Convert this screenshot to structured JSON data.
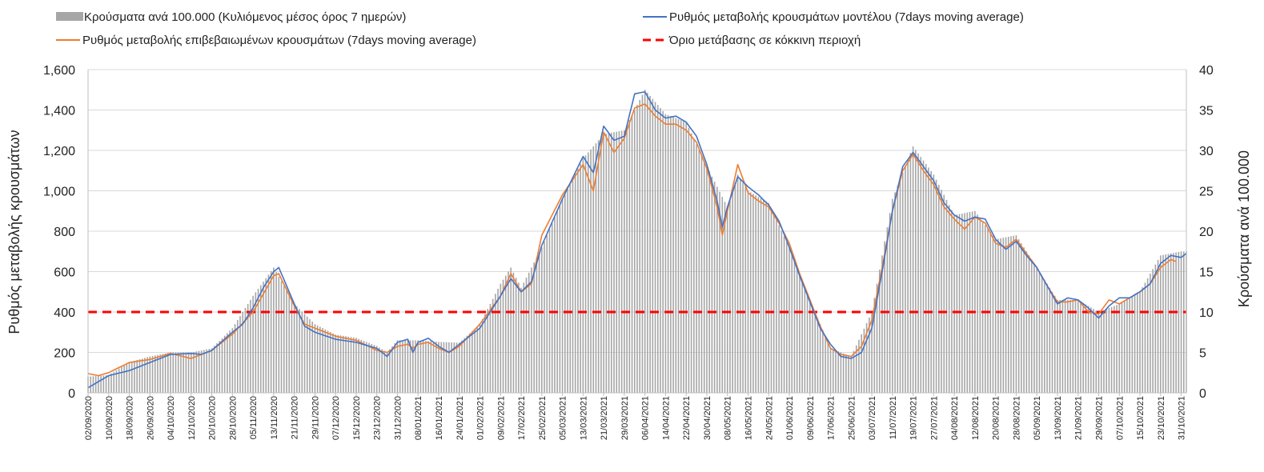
{
  "chart_data": {
    "type": "bar+line",
    "legend": [
      {
        "key": "bars",
        "label": "Κρούσματα ανά 100.000 (Κυλιόμενος μέσος όρος 7 ημερών)",
        "color": "#a6a6a6",
        "kind": "bar"
      },
      {
        "key": "model",
        "label": "Ρυθμός μεταβολής κρουσμάτων μοντέλου (7days moving average)",
        "color": "#4472c4",
        "kind": "line"
      },
      {
        "key": "confirmed",
        "label": "Ρυθμός μεταβολής επιβεβαιωμένων κρουσμάτων (7days moving average)",
        "color": "#ed7d31",
        "kind": "line"
      },
      {
        "key": "threshold",
        "label": "Όριο μετάβασης σε κόκκινη περιοχή",
        "color": "#ff0000",
        "kind": "dashed"
      }
    ],
    "ylabel_left": "Ρυθμός μεταβολής κρουσμάτων",
    "ylabel_right": "Κρούσματα ανά 100.000",
    "ylim_left": [
      0,
      1600
    ],
    "ylim_right": [
      0,
      40
    ],
    "yticks_left": [
      "0",
      "200",
      "400",
      "600",
      "800",
      "1,000",
      "1,200",
      "1,400",
      "1,600"
    ],
    "yticks_right": [
      "0",
      "5",
      "10",
      "15",
      "20",
      "25",
      "30",
      "35",
      "40"
    ],
    "threshold_value": 400,
    "x_start": "2020-09-02",
    "x_end": "2021-11-02",
    "xtick_labels": [
      "02/09/2020",
      "10/09/2020",
      "18/09/2020",
      "26/09/2020",
      "04/10/2020",
      "12/10/2020",
      "20/10/2020",
      "28/10/2020",
      "05/11/2020",
      "13/11/2020",
      "21/11/2020",
      "29/11/2020",
      "07/12/2020",
      "15/12/2020",
      "23/12/2020",
      "31/12/2020",
      "08/01/2021",
      "16/01/2021",
      "24/01/2021",
      "01/02/2021",
      "09/02/2021",
      "17/02/2021",
      "25/02/2021",
      "05/03/2021",
      "13/03/2021",
      "21/03/2021",
      "29/03/2021",
      "06/04/2021",
      "14/04/2021",
      "22/04/2021",
      "30/04/2021",
      "08/05/2021",
      "16/05/2021",
      "24/05/2021",
      "01/06/2021",
      "09/06/2021",
      "17/06/2021",
      "25/06/2021",
      "03/07/2021",
      "11/07/2021",
      "19/07/2021",
      "27/07/2021",
      "04/08/2021",
      "12/08/2021",
      "20/08/2021",
      "28/08/2021",
      "05/09/2021",
      "13/09/2021",
      "21/09/2021",
      "29/09/2021",
      "07/10/2021",
      "15/10/2021",
      "23/10/2021",
      "31/10/2021"
    ],
    "model_series": [
      [
        "2020-09-02",
        25
      ],
      [
        "2020-09-10",
        85
      ],
      [
        "2020-09-18",
        110
      ],
      [
        "2020-09-26",
        150
      ],
      [
        "2020-10-04",
        190
      ],
      [
        "2020-10-12",
        195
      ],
      [
        "2020-10-16",
        190
      ],
      [
        "2020-10-20",
        210
      ],
      [
        "2020-10-28",
        300
      ],
      [
        "2020-11-01",
        340
      ],
      [
        "2020-11-05",
        420
      ],
      [
        "2020-11-09",
        520
      ],
      [
        "2020-11-13",
        600
      ],
      [
        "2020-11-15",
        620
      ],
      [
        "2020-11-21",
        440
      ],
      [
        "2020-11-25",
        330
      ],
      [
        "2020-11-29",
        300
      ],
      [
        "2020-12-07",
        265
      ],
      [
        "2020-12-15",
        250
      ],
      [
        "2020-12-23",
        220
      ],
      [
        "2020-12-27",
        180
      ],
      [
        "2020-12-31",
        250
      ],
      [
        "2021-01-04",
        265
      ],
      [
        "2021-01-06",
        200
      ],
      [
        "2021-01-08",
        250
      ],
      [
        "2021-01-12",
        270
      ],
      [
        "2021-01-16",
        230
      ],
      [
        "2021-01-20",
        200
      ],
      [
        "2021-01-24",
        240
      ],
      [
        "2021-02-01",
        320
      ],
      [
        "2021-02-09",
        480
      ],
      [
        "2021-02-13",
        565
      ],
      [
        "2021-02-17",
        500
      ],
      [
        "2021-02-21",
        550
      ],
      [
        "2021-02-25",
        730
      ],
      [
        "2021-03-05",
        960
      ],
      [
        "2021-03-13",
        1170
      ],
      [
        "2021-03-17",
        1090
      ],
      [
        "2021-03-21",
        1320
      ],
      [
        "2021-03-25",
        1250
      ],
      [
        "2021-03-29",
        1270
      ],
      [
        "2021-04-02",
        1480
      ],
      [
        "2021-04-06",
        1490
      ],
      [
        "2021-04-10",
        1400
      ],
      [
        "2021-04-14",
        1360
      ],
      [
        "2021-04-18",
        1370
      ],
      [
        "2021-04-22",
        1340
      ],
      [
        "2021-04-26",
        1270
      ],
      [
        "2021-04-30",
        1130
      ],
      [
        "2021-05-04",
        950
      ],
      [
        "2021-05-06",
        820
      ],
      [
        "2021-05-08",
        920
      ],
      [
        "2021-05-12",
        1070
      ],
      [
        "2021-05-16",
        1020
      ],
      [
        "2021-05-20",
        980
      ],
      [
        "2021-05-24",
        930
      ],
      [
        "2021-05-28",
        850
      ],
      [
        "2021-06-01",
        720
      ],
      [
        "2021-06-05",
        580
      ],
      [
        "2021-06-09",
        450
      ],
      [
        "2021-06-13",
        320
      ],
      [
        "2021-06-17",
        240
      ],
      [
        "2021-06-21",
        180
      ],
      [
        "2021-06-25",
        170
      ],
      [
        "2021-06-29",
        200
      ],
      [
        "2021-07-03",
        320
      ],
      [
        "2021-07-07",
        600
      ],
      [
        "2021-07-11",
        900
      ],
      [
        "2021-07-15",
        1120
      ],
      [
        "2021-07-19",
        1190
      ],
      [
        "2021-07-23",
        1120
      ],
      [
        "2021-07-27",
        1050
      ],
      [
        "2021-07-31",
        940
      ],
      [
        "2021-08-04",
        880
      ],
      [
        "2021-08-08",
        850
      ],
      [
        "2021-08-12",
        870
      ],
      [
        "2021-08-16",
        860
      ],
      [
        "2021-08-20",
        760
      ],
      [
        "2021-08-24",
        710
      ],
      [
        "2021-08-28",
        750
      ],
      [
        "2021-09-01",
        680
      ],
      [
        "2021-09-05",
        620
      ],
      [
        "2021-09-09",
        530
      ],
      [
        "2021-09-13",
        440
      ],
      [
        "2021-09-17",
        470
      ],
      [
        "2021-09-21",
        460
      ],
      [
        "2021-09-25",
        420
      ],
      [
        "2021-09-29",
        370
      ],
      [
        "2021-10-03",
        430
      ],
      [
        "2021-10-07",
        470
      ],
      [
        "2021-10-11",
        470
      ],
      [
        "2021-10-15",
        500
      ],
      [
        "2021-10-19",
        540
      ],
      [
        "2021-10-23",
        640
      ],
      [
        "2021-10-27",
        680
      ],
      [
        "2021-10-31",
        670
      ],
      [
        "2021-11-02",
        690
      ]
    ],
    "confirmed_series": [
      [
        "2020-09-02",
        95
      ],
      [
        "2020-09-06",
        85
      ],
      [
        "2020-09-10",
        100
      ],
      [
        "2020-09-18",
        150
      ],
      [
        "2020-09-26",
        165
      ],
      [
        "2020-10-04",
        195
      ],
      [
        "2020-10-12",
        170
      ],
      [
        "2020-10-20",
        210
      ],
      [
        "2020-10-28",
        290
      ],
      [
        "2020-11-05",
        400
      ],
      [
        "2020-11-09",
        490
      ],
      [
        "2020-11-13",
        580
      ],
      [
        "2020-11-15",
        590
      ],
      [
        "2020-11-21",
        430
      ],
      [
        "2020-11-25",
        340
      ],
      [
        "2020-11-29",
        320
      ],
      [
        "2020-12-07",
        280
      ],
      [
        "2020-12-15",
        260
      ],
      [
        "2020-12-23",
        210
      ],
      [
        "2020-12-27",
        200
      ],
      [
        "2020-12-31",
        230
      ],
      [
        "2021-01-04",
        240
      ],
      [
        "2021-01-06",
        220
      ],
      [
        "2021-01-08",
        240
      ],
      [
        "2021-01-12",
        250
      ],
      [
        "2021-01-16",
        220
      ],
      [
        "2021-01-20",
        200
      ],
      [
        "2021-01-24",
        230
      ],
      [
        "2021-02-01",
        340
      ],
      [
        "2021-02-09",
        480
      ],
      [
        "2021-02-13",
        590
      ],
      [
        "2021-02-17",
        500
      ],
      [
        "2021-02-21",
        540
      ],
      [
        "2021-02-25",
        780
      ],
      [
        "2021-03-05",
        980
      ],
      [
        "2021-03-13",
        1130
      ],
      [
        "2021-03-17",
        1000
      ],
      [
        "2021-03-21",
        1290
      ],
      [
        "2021-03-25",
        1190
      ],
      [
        "2021-03-29",
        1260
      ],
      [
        "2021-04-02",
        1410
      ],
      [
        "2021-04-06",
        1430
      ],
      [
        "2021-04-10",
        1370
      ],
      [
        "2021-04-14",
        1330
      ],
      [
        "2021-04-18",
        1330
      ],
      [
        "2021-04-22",
        1300
      ],
      [
        "2021-04-26",
        1240
      ],
      [
        "2021-04-30",
        1110
      ],
      [
        "2021-05-04",
        920
      ],
      [
        "2021-05-06",
        780
      ],
      [
        "2021-05-08",
        900
      ],
      [
        "2021-05-12",
        1130
      ],
      [
        "2021-05-16",
        990
      ],
      [
        "2021-05-20",
        950
      ],
      [
        "2021-05-24",
        920
      ],
      [
        "2021-05-28",
        840
      ],
      [
        "2021-06-01",
        740
      ],
      [
        "2021-06-05",
        590
      ],
      [
        "2021-06-09",
        460
      ],
      [
        "2021-06-13",
        330
      ],
      [
        "2021-06-17",
        220
      ],
      [
        "2021-06-21",
        190
      ],
      [
        "2021-06-25",
        180
      ],
      [
        "2021-06-29",
        230
      ],
      [
        "2021-07-03",
        360
      ],
      [
        "2021-07-07",
        620
      ],
      [
        "2021-07-11",
        900
      ],
      [
        "2021-07-15",
        1100
      ],
      [
        "2021-07-19",
        1180
      ],
      [
        "2021-07-23",
        1100
      ],
      [
        "2021-07-27",
        1030
      ],
      [
        "2021-07-31",
        920
      ],
      [
        "2021-08-04",
        860
      ],
      [
        "2021-08-08",
        810
      ],
      [
        "2021-08-12",
        870
      ],
      [
        "2021-08-16",
        840
      ],
      [
        "2021-08-20",
        740
      ],
      [
        "2021-08-24",
        720
      ],
      [
        "2021-08-28",
        760
      ],
      [
        "2021-09-01",
        690
      ],
      [
        "2021-09-05",
        620
      ],
      [
        "2021-09-09",
        530
      ],
      [
        "2021-09-13",
        450
      ],
      [
        "2021-09-17",
        450
      ],
      [
        "2021-09-21",
        460
      ],
      [
        "2021-09-25",
        400
      ],
      [
        "2021-09-29",
        390
      ],
      [
        "2021-10-03",
        460
      ],
      [
        "2021-10-07",
        440
      ],
      [
        "2021-10-11",
        470
      ],
      [
        "2021-10-15",
        500
      ],
      [
        "2021-10-19",
        540
      ],
      [
        "2021-10-23",
        620
      ],
      [
        "2021-10-27",
        660
      ],
      [
        "2021-10-29",
        650
      ]
    ],
    "bars_series": [
      [
        "2020-09-02",
        2
      ],
      [
        "2020-09-10",
        2.2
      ],
      [
        "2020-09-18",
        3.8
      ],
      [
        "2020-09-26",
        4.5
      ],
      [
        "2020-10-04",
        5
      ],
      [
        "2020-10-12",
        5
      ],
      [
        "2020-10-20",
        5.5
      ],
      [
        "2020-10-28",
        8
      ],
      [
        "2020-11-05",
        12
      ],
      [
        "2020-11-13",
        15.5
      ],
      [
        "2020-11-21",
        11
      ],
      [
        "2020-11-29",
        8.5
      ],
      [
        "2020-12-07",
        7.2
      ],
      [
        "2020-12-15",
        6.8
      ],
      [
        "2020-12-23",
        5.8
      ],
      [
        "2020-12-27",
        5
      ],
      [
        "2020-12-31",
        6.5
      ],
      [
        "2021-01-08",
        6.5
      ],
      [
        "2021-01-16",
        6.3
      ],
      [
        "2021-01-24",
        6.2
      ],
      [
        "2021-02-01",
        8.5
      ],
      [
        "2021-02-09",
        13.5
      ],
      [
        "2021-02-13",
        15.5
      ],
      [
        "2021-02-17",
        13
      ],
      [
        "2021-02-25",
        18
      ],
      [
        "2021-03-05",
        24
      ],
      [
        "2021-03-13",
        29
      ],
      [
        "2021-03-21",
        32
      ],
      [
        "2021-03-29",
        32.5
      ],
      [
        "2021-04-06",
        37.5
      ],
      [
        "2021-04-14",
        34.5
      ],
      [
        "2021-04-22",
        33.5
      ],
      [
        "2021-04-30",
        28
      ],
      [
        "2021-05-08",
        23
      ],
      [
        "2021-05-12",
        27
      ],
      [
        "2021-05-16",
        25
      ],
      [
        "2021-05-24",
        23.5
      ],
      [
        "2021-06-01",
        18
      ],
      [
        "2021-06-09",
        11.5
      ],
      [
        "2021-06-17",
        5.5
      ],
      [
        "2021-06-25",
        4.5
      ],
      [
        "2021-07-03",
        10
      ],
      [
        "2021-07-11",
        24
      ],
      [
        "2021-07-19",
        30.5
      ],
      [
        "2021-07-27",
        27
      ],
      [
        "2021-08-04",
        22
      ],
      [
        "2021-08-12",
        22.5
      ],
      [
        "2021-08-20",
        19
      ],
      [
        "2021-08-28",
        19.5
      ],
      [
        "2021-09-05",
        15.5
      ],
      [
        "2021-09-13",
        11.5
      ],
      [
        "2021-09-21",
        11.5
      ],
      [
        "2021-09-29",
        10
      ],
      [
        "2021-10-07",
        11
      ],
      [
        "2021-10-15",
        12.5
      ],
      [
        "2021-10-23",
        17
      ],
      [
        "2021-10-31",
        17.5
      ],
      [
        "2021-11-02",
        17.5
      ]
    ]
  }
}
